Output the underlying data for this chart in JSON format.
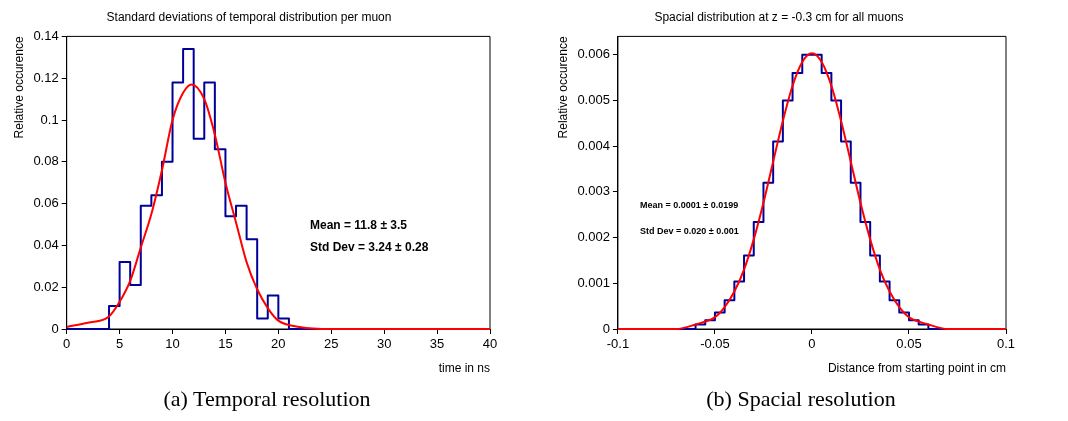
{
  "chart_data": [
    {
      "type": "step",
      "title": "Standard deviations of temporal distribution per muon",
      "xlabel": "time in ns",
      "ylabel": "Relative occurence",
      "xlim": [
        0,
        40
      ],
      "xticks": [
        0,
        5,
        10,
        15,
        20,
        25,
        30,
        35,
        40
      ],
      "ylim": [
        0,
        0.14
      ],
      "yticks": [
        0,
        0.02,
        0.04,
        0.06,
        0.08,
        0.1,
        0.12,
        0.14
      ],
      "grid": false,
      "legend": false,
      "annotations": [
        "Mean = 11.8 ± 3.5",
        "Std Dev = 3.24 ± 0.28",
        "(a) Temporal resolution"
      ],
      "series": [
        {
          "color": "#000099",
          "x": [
            0,
            4,
            5,
            6,
            7,
            8,
            9,
            10,
            11,
            12,
            13,
            14,
            15,
            16,
            17,
            18,
            19,
            20,
            21,
            40
          ],
          "values": [
            0,
            0.011,
            0.032,
            0.021,
            0.059,
            0.064,
            0.08,
            0.118,
            0.134,
            0.091,
            0.118,
            0.086,
            0.054,
            0.059,
            0.043,
            0.005,
            0.016,
            0.005,
            0,
            0
          ]
        },
        {
          "type": "line",
          "color": "#ff0000",
          "x": [
            0,
            2,
            4,
            5,
            6,
            7,
            8,
            9,
            10,
            11,
            11.8,
            13,
            14,
            15,
            16,
            17,
            18,
            19,
            20,
            22,
            25,
            40
          ],
          "values": [
            0.001,
            0.003,
            0.006,
            0.013,
            0.023,
            0.039,
            0.055,
            0.076,
            0.1,
            0.113,
            0.117,
            0.11,
            0.093,
            0.07,
            0.051,
            0.032,
            0.019,
            0.01,
            0.004,
            0.001,
            0,
            0
          ]
        }
      ]
    },
    {
      "type": "step",
      "title": "Spacial distribution at z = -0.3 cm for all muons",
      "xlabel": "Distance from starting point in cm",
      "ylabel": "Relative occurence",
      "xlim": [
        -0.1,
        0.1
      ],
      "xticks": [
        -0.1,
        -0.05,
        0,
        0.05,
        0.1
      ],
      "ylim": [
        0,
        0.0064
      ],
      "yticks": [
        0,
        0.001,
        0.002,
        0.003,
        0.004,
        0.005,
        0.006
      ],
      "grid": false,
      "legend": false,
      "annotations": [
        "Mean = 0.0001 ± 0.0199",
        "Std Dev = 0.020 ± 0.001",
        "(b) Spacial resolution"
      ],
      "series": [
        {
          "color": "#000099",
          "x": [
            -0.1,
            -0.06,
            -0.055,
            -0.05,
            -0.045,
            -0.04,
            -0.035,
            -0.03,
            -0.025,
            -0.02,
            -0.015,
            -0.01,
            -0.005,
            0,
            0.005,
            0.01,
            0.015,
            0.02,
            0.025,
            0.03,
            0.035,
            0.04,
            0.045,
            0.05,
            0.055,
            0.06,
            0.1
          ],
          "values": [
            0,
            0.0001,
            0.00019,
            0.00036,
            0.00063,
            0.00104,
            0.00161,
            0.00234,
            0.0032,
            0.0041,
            0.005,
            0.0056,
            0.006,
            0.006,
            0.0056,
            0.005,
            0.0041,
            0.0032,
            0.00234,
            0.00161,
            0.00104,
            0.00063,
            0.00036,
            0.00019,
            0.0001,
            0,
            0
          ]
        },
        {
          "type": "line",
          "color": "#ff0000",
          "x": [
            -0.1,
            -0.09,
            -0.08,
            -0.07,
            -0.06,
            -0.05,
            -0.045,
            -0.04,
            -0.035,
            -0.03,
            -0.025,
            -0.02,
            -0.015,
            -0.01,
            -0.005,
            0,
            0.005,
            0.01,
            0.015,
            0.02,
            0.025,
            0.03,
            0.035,
            0.04,
            0.045,
            0.05,
            0.06,
            0.07,
            0.08,
            0.09,
            0.1
          ],
          "values": [
            0,
            0,
            0,
            0,
            0.0001,
            0.00026,
            0.00048,
            0.00082,
            0.0013,
            0.00196,
            0.00276,
            0.00366,
            0.00455,
            0.00532,
            0.00584,
            0.00603,
            0.00584,
            0.00532,
            0.00455,
            0.00366,
            0.00276,
            0.00196,
            0.0013,
            0.00082,
            0.00048,
            0.00026,
            0.0001,
            0,
            0,
            0,
            0
          ]
        }
      ]
    }
  ]
}
